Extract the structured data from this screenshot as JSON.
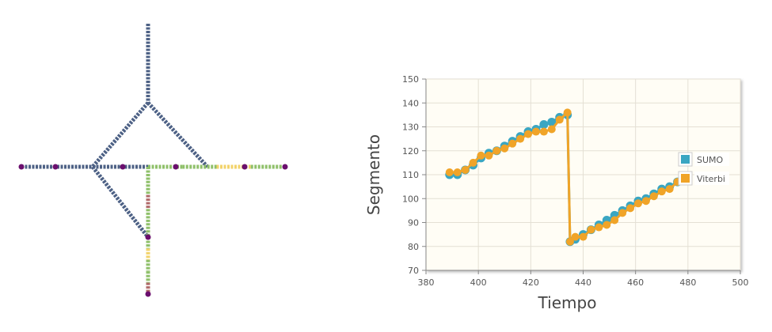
{
  "colors": {
    "road": "#4d6185",
    "road_green": "#8fc06a",
    "road_yellow": "#f2d36b",
    "road_red": "#b06a6a",
    "node": "#6b0f6e",
    "plot_bg": "#fffdf5",
    "grid": "#e4e0d4",
    "axis": "#888888",
    "sumo": "#3aa6c2",
    "viterbi": "#f0a428"
  },
  "network": {
    "node_count": 9
  },
  "chart_data": {
    "type": "line",
    "xlabel": "Tiempo",
    "ylabel": "Segmento",
    "xlim": [
      380,
      500
    ],
    "ylim": [
      70,
      150
    ],
    "x_ticks": [
      "380",
      "400",
      "420",
      "440",
      "460",
      "480",
      "500"
    ],
    "y_ticks": [
      "70",
      "80",
      "90",
      "100",
      "110",
      "120",
      "130",
      "140",
      "150"
    ],
    "grid": true,
    "legend_position": "right",
    "series": [
      {
        "name": "SUMO",
        "color": "#3aa6c2",
        "x": [
          389,
          392,
          395,
          398,
          401,
          404,
          407,
          410,
          413,
          416,
          419,
          422,
          425,
          428,
          431,
          434,
          435,
          437,
          440,
          443,
          446,
          449,
          452,
          455,
          458,
          461,
          464,
          467,
          470,
          473,
          476,
          479
        ],
        "y": [
          110,
          110,
          112,
          114,
          117,
          119,
          120,
          122,
          124,
          126,
          128,
          129,
          131,
          132,
          134,
          135,
          82,
          83,
          85,
          87,
          89,
          91,
          93,
          95,
          97,
          99,
          100,
          102,
          104,
          105,
          107,
          109
        ]
      },
      {
        "name": "Viterbi",
        "color": "#f0a428",
        "x": [
          389,
          392,
          395,
          398,
          401,
          404,
          407,
          410,
          413,
          416,
          419,
          422,
          425,
          428,
          431,
          434,
          435,
          437,
          440,
          443,
          446,
          449,
          452,
          455,
          458,
          461,
          464,
          467,
          470,
          473,
          476,
          479
        ],
        "y": [
          111,
          111,
          112,
          115,
          118,
          118,
          120,
          121,
          123,
          125,
          127,
          128,
          128,
          129,
          133,
          136,
          82,
          84,
          84,
          87,
          88,
          89,
          91,
          94,
          96,
          98,
          99,
          101,
          103,
          104,
          107,
          109
        ]
      }
    ]
  }
}
